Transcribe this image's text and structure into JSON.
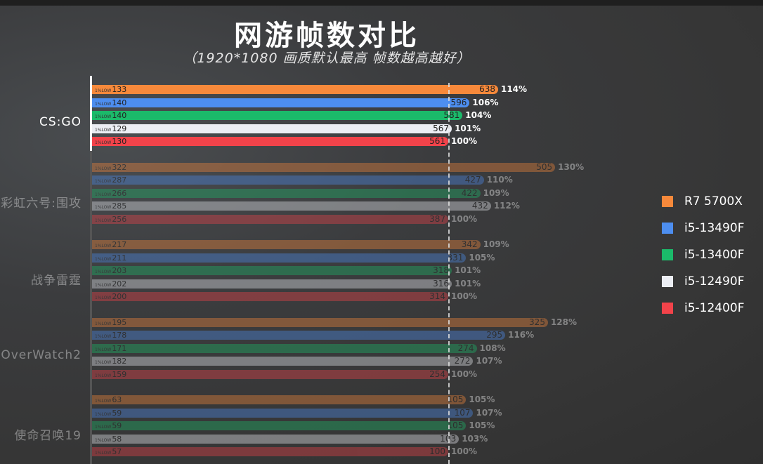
{
  "chart_data": {
    "type": "bar",
    "orientation": "horizontal",
    "title": "网游帧数对比",
    "subtitle": "（1920*1080 画质默认最高 帧数越高越好）",
    "low_label": "1%LOW",
    "baseline_percent": 100,
    "xlim_percent": [
      0,
      130
    ],
    "legend_position": "right",
    "series": [
      {
        "name": "R7 5700X",
        "color": "#f7893b"
      },
      {
        "name": "i5-13490F",
        "color": "#4d8ef0"
      },
      {
        "name": "i5-13400F",
        "color": "#1bba6a"
      },
      {
        "name": "i5-12490F",
        "color": "#eceef4"
      },
      {
        "name": "i5-12400F",
        "color": "#f2434a"
      }
    ],
    "categories": [
      "CS:GO",
      "彩虹六号:围攻",
      "战争雷霆",
      "OverWatch2",
      "使命召唤19"
    ],
    "groups": [
      {
        "game": "CS:GO",
        "avg": [
          638,
          596,
          581,
          567,
          561
        ],
        "low": [
          133,
          140,
          140,
          129,
          130
        ],
        "pct": [
          "114%",
          "106%",
          "104%",
          "101%",
          "100%"
        ]
      },
      {
        "game": "彩虹六号:围攻",
        "avg": [
          505,
          427,
          422,
          432,
          387
        ],
        "low": [
          322,
          287,
          266,
          285,
          256
        ],
        "pct": [
          "130%",
          "110%",
          "109%",
          "112%",
          "100%"
        ]
      },
      {
        "game": "战争雷霆",
        "avg": [
          342,
          331,
          318,
          316,
          314
        ],
        "low": [
          217,
          211,
          203,
          202,
          200
        ],
        "pct": [
          "109%",
          "105%",
          "101%",
          "101%",
          "100%"
        ]
      },
      {
        "game": "OverWatch2",
        "avg": [
          325,
          295,
          274,
          272,
          254
        ],
        "low": [
          195,
          178,
          171,
          182,
          159
        ],
        "pct": [
          "128%",
          "116%",
          "108%",
          "107%",
          "100%"
        ]
      },
      {
        "game": "使命召唤19",
        "avg": [
          105,
          107,
          105,
          103,
          100
        ],
        "low": [
          63,
          59,
          59,
          58,
          57
        ],
        "pct": [
          "105%",
          "107%",
          "105%",
          "103%",
          "100%"
        ]
      }
    ]
  }
}
